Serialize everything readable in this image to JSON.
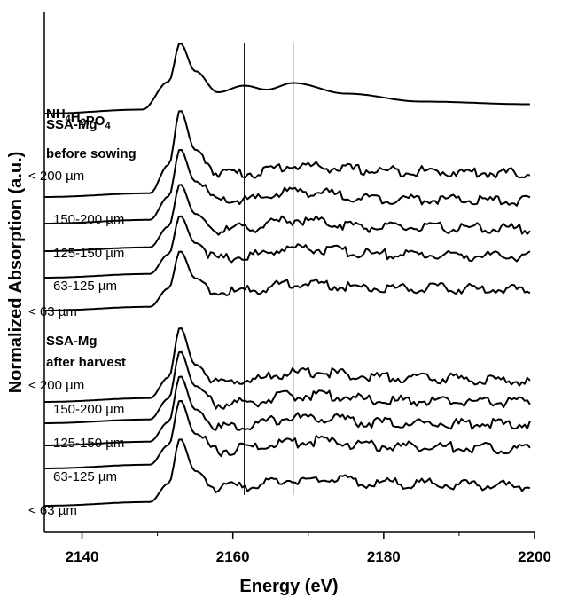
{
  "chart_data": {
    "type": "line",
    "title": "",
    "xlabel": "Energy (eV)",
    "ylabel": "Normalized Absorption (a.u.)",
    "xlim": [
      2135,
      2200
    ],
    "xticks": [
      "2140",
      "2160",
      "2180",
      "2200"
    ],
    "y_ticks_shown": false,
    "reference_lines_x": [
      2161.5,
      2168
    ],
    "group_labels": [
      {
        "lines": [
          "SSA-Mg",
          "before sowing"
        ]
      },
      {
        "lines": [
          "SSA-Mg",
          "after harvest"
        ]
      }
    ],
    "series": [
      {
        "name": "NH4H2PO4",
        "label_parts": [
          [
            "NH",
            ""
          ],
          [
            "4",
            "sub"
          ],
          [
            "H",
            ""
          ],
          [
            "2",
            "sub"
          ],
          [
            "PO",
            ""
          ],
          [
            "4",
            "sub"
          ]
        ],
        "group": "reference",
        "baseline": 0.0,
        "peak": 2.65,
        "x": [
          2135,
          2148,
          2151.5,
          2153,
          2155,
          2158,
          2161.5,
          2164.5,
          2168,
          2175,
          2185,
          2199.5
        ],
        "y": [
          0.0,
          0.15,
          1.2,
          2.65,
          1.6,
          0.8,
          1.05,
          0.9,
          1.15,
          0.75,
          0.45,
          0.35
        ]
      },
      {
        "name": "< 200 µm",
        "group": "before sowing",
        "baseline": 0.0,
        "peak": 3.5,
        "x": [
          2135,
          2149,
          2151.5,
          2153,
          2155,
          2158,
          2162,
          2168,
          2180,
          2199.5
        ],
        "y": [
          0.0,
          0.15,
          1.3,
          3.5,
          1.9,
          1.0,
          0.95,
          1.25,
          1.05,
          0.95
        ]
      },
      {
        "name": "150-200 µm",
        "group": "before sowing",
        "baseline": 0.0,
        "peak": 3.0,
        "x": [
          2135,
          2149,
          2151.5,
          2153,
          2155,
          2158,
          2162,
          2168,
          2180,
          2199.5
        ],
        "y": [
          0.0,
          0.15,
          1.1,
          3.0,
          1.7,
          0.9,
          0.95,
          1.3,
          1.0,
          0.9
        ]
      },
      {
        "name": "125-150 µm",
        "group": "before sowing",
        "baseline": 0.0,
        "peak": 2.7,
        "x": [
          2135,
          2149,
          2151.5,
          2153,
          2155,
          2158,
          2162,
          2168,
          2180,
          2199.5
        ],
        "y": [
          0.0,
          0.15,
          1.0,
          2.7,
          1.5,
          0.8,
          0.95,
          1.25,
          0.95,
          0.9
        ]
      },
      {
        "name": "63-125 µm",
        "group": "before sowing",
        "baseline": 0.0,
        "peak": 2.5,
        "x": [
          2135,
          2149,
          2151.5,
          2153,
          2155,
          2158,
          2162,
          2168,
          2180,
          2199.5
        ],
        "y": [
          0.0,
          0.15,
          0.95,
          2.5,
          1.4,
          0.75,
          0.9,
          1.2,
          0.95,
          0.85
        ]
      },
      {
        "name": "< 63 µm",
        "group": "before sowing",
        "baseline": 0.0,
        "peak": 2.4,
        "x": [
          2135,
          2149,
          2151.5,
          2153,
          2155,
          2158,
          2162,
          2168,
          2180,
          2199.5
        ],
        "y": [
          0.0,
          0.15,
          0.9,
          2.4,
          1.3,
          0.7,
          0.8,
          1.1,
          0.9,
          0.85
        ]
      },
      {
        "name": "< 200 µm",
        "group": "after harvest",
        "baseline": 0.0,
        "peak": 3.0,
        "x": [
          2135,
          2149,
          2151.5,
          2153,
          2155,
          2158,
          2162,
          2168,
          2171,
          2180,
          2199.5
        ],
        "y": [
          0.0,
          0.15,
          1.0,
          3.0,
          1.5,
          0.75,
          0.9,
          1.15,
          1.2,
          1.0,
          0.85
        ]
      },
      {
        "name": "150-200 µm",
        "group": "after harvest",
        "baseline": 0.0,
        "peak": 2.9,
        "x": [
          2135,
          2149,
          2151.5,
          2153,
          2155,
          2158,
          2162,
          2168,
          2171,
          2180,
          2199.5
        ],
        "y": [
          0.0,
          0.15,
          1.0,
          2.9,
          1.5,
          0.75,
          0.85,
          1.1,
          1.15,
          0.9,
          0.85
        ]
      },
      {
        "name": "125-150 µm",
        "group": "after harvest",
        "baseline": 0.0,
        "peak": 2.8,
        "x": [
          2135,
          2149,
          2151.5,
          2153,
          2155,
          2158,
          2162,
          2168,
          2171,
          2180,
          2199.5
        ],
        "y": [
          0.0,
          0.15,
          0.95,
          2.8,
          1.45,
          0.7,
          0.85,
          1.1,
          1.1,
          0.9,
          0.85
        ]
      },
      {
        "name": "63-125 µm",
        "group": "after harvest",
        "baseline": 0.0,
        "peak": 2.75,
        "x": [
          2135,
          2149,
          2151.5,
          2153,
          2155,
          2158,
          2162,
          2168,
          2171,
          2180,
          2199.5
        ],
        "y": [
          0.0,
          0.15,
          0.95,
          2.75,
          1.4,
          0.7,
          0.85,
          1.05,
          1.1,
          0.9,
          0.8
        ]
      },
      {
        "name": "< 63 µm",
        "group": "after harvest",
        "baseline": 0.0,
        "peak": 2.7,
        "x": [
          2135,
          2149,
          2151.5,
          2153,
          2155,
          2158,
          2162,
          2168,
          2171,
          2180,
          2199.5
        ],
        "y": [
          0.0,
          0.15,
          0.9,
          2.7,
          1.4,
          0.7,
          0.8,
          1.05,
          1.1,
          0.9,
          0.8
        ]
      }
    ]
  }
}
